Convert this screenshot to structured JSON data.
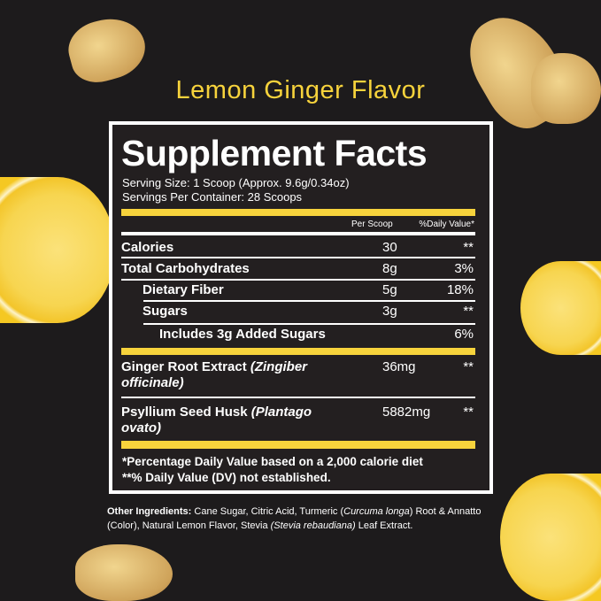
{
  "flavor_title": "Lemon Ginger Flavor",
  "label_title": "Supplement Facts",
  "serving_size": "Serving Size: 1 Scoop (Approx. 9.6g/0.34oz)",
  "servings_per_container": "Servings Per Container: 28 Scoops",
  "col_amount": "Per Scoop",
  "col_dv": "%Daily Value*",
  "rows": [
    {
      "name": "Calories",
      "amount": "30",
      "dv": "**"
    },
    {
      "name": "Total Carbohydrates",
      "amount": "8g",
      "dv": "3%"
    },
    {
      "name": "Dietary Fiber",
      "amount": "5g",
      "dv": "18%"
    },
    {
      "name": "Sugars",
      "amount": "3g",
      "dv": "**"
    },
    {
      "name": "Includes 3g Added Sugars",
      "amount": "",
      "dv": "6%"
    },
    {
      "name": "Ginger Root Extract",
      "latin": "(Zingiber officinale)",
      "amount": "36mg",
      "dv": "**"
    },
    {
      "name": "Psyllium Seed Husk",
      "latin": "(Plantago ovato)",
      "amount": "5882mg",
      "dv": "**"
    }
  ],
  "footnote1": "*Percentage Daily Value based on a 2,000 calorie diet",
  "footnote2": "**% Daily Value (DV) not established.",
  "other_label": "Other Ingredients:",
  "other_1": " Cane Sugar, Citric Acid, Turmeric (",
  "other_2": "Curcuma longa",
  "other_3": ") Root & Annatto (Color), Natural Lemon Flavor, Stevia ",
  "other_4": "(Stevia rebaudiana)",
  "other_5": " Leaf Extract.",
  "colors": {
    "background": "#1d1b1c",
    "accent_yellow": "#f7d33c",
    "panel": "#231f20"
  }
}
